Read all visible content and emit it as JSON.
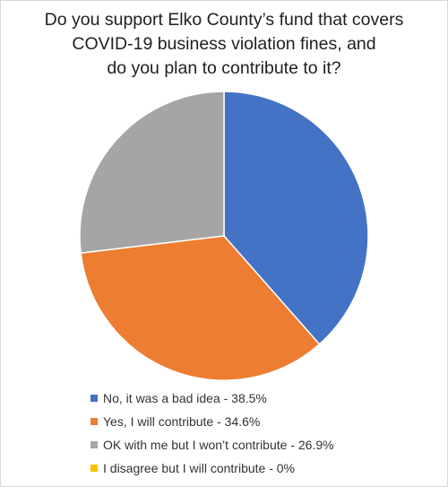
{
  "chart_data": {
    "type": "pie",
    "title_lines": [
      "Do you support Elko County’s fund that covers",
      "COVID-19 business violation fines, and",
      "do you plan to contribute to it?"
    ],
    "slices": [
      {
        "label": "No, it was a bad idea - 38.5%",
        "value": 38.5,
        "color": "#4472C4"
      },
      {
        "label": "Yes, I will contribute - 34.6%",
        "value": 34.6,
        "color": "#ED7D31"
      },
      {
        "label": "OK with me but I won’t contribute - 26.9%",
        "value": 26.9,
        "color": "#A5A5A5"
      },
      {
        "label": "I disagree but I will contribute - 0%",
        "value": 0,
        "color": "#FFC000"
      }
    ],
    "start_angle": "12 o'clock, clockwise",
    "legend_position": "bottom"
  }
}
